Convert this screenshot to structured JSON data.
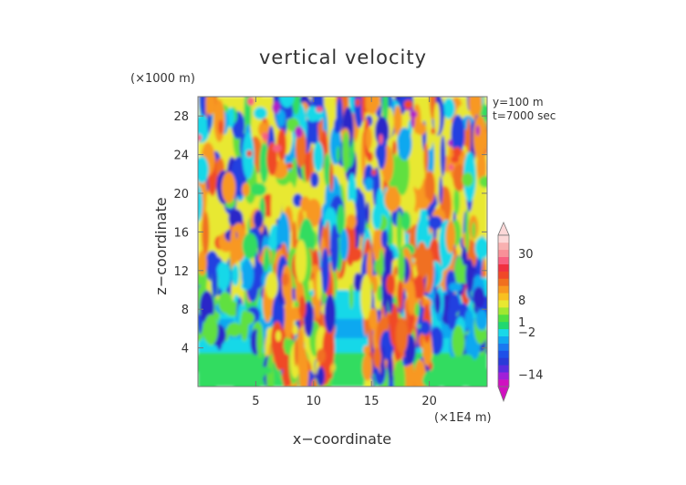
{
  "chart_data": {
    "type": "heatmap",
    "title": "vertical velocity",
    "xlabel": "x−coordinate",
    "ylabel": "z−coordinate",
    "x_unit": "(×1E4 m)",
    "y_unit": "(×1000 m)",
    "annotations": [
      "y=100  m",
      "t=7000 sec"
    ],
    "xlim": [
      0,
      25
    ],
    "ylim": [
      0,
      30
    ],
    "x_ticks": [
      5,
      10,
      15,
      20
    ],
    "y_ticks": [
      4,
      8,
      12,
      16,
      20,
      24,
      28
    ],
    "x_tick_labels": [
      "5",
      "10",
      "15",
      "20"
    ],
    "y_tick_labels": [
      "4",
      "8",
      "12",
      "16",
      "20",
      "24",
      "28"
    ],
    "colorbar": {
      "tick_labels": [
        "30",
        "8",
        "1",
        "−2",
        "−14"
      ],
      "levels": [
        -14,
        -2,
        1,
        8,
        30
      ],
      "colors": [
        "#d010c0",
        "#a020d8",
        "#5a2ce0",
        "#2a3ad8",
        "#1e50e8",
        "#1a78f0",
        "#10a8f0",
        "#18d8e8",
        "#20d870",
        "#50e040",
        "#a0e830",
        "#e8e830",
        "#f8c020",
        "#f89820",
        "#f07020",
        "#f04828",
        "#f03040",
        "#f86080",
        "#f89098",
        "#f8b0b0",
        "#fcd8d8"
      ]
    },
    "legend": "colorbar-right",
    "grid": false,
    "field_summary": {
      "lower_band_color_z_0_to_3": "green",
      "mid_band_color_z_3_to_6": "cyan",
      "updraft_regions_x": [
        [
          6,
          11
        ],
        [
          15,
          20
        ]
      ],
      "upper_layer_z_10_to_30": "mixed orange, yellow, blue plumes"
    }
  }
}
